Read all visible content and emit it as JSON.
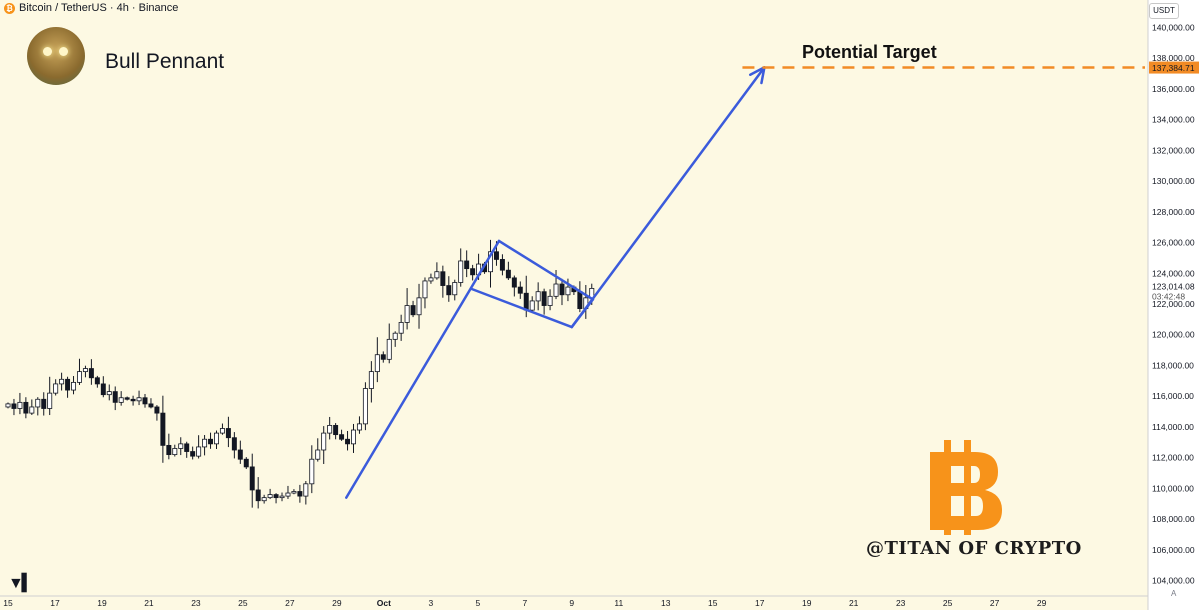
{
  "header": {
    "coin_symbol": "₿",
    "title": "Bitcoin / TetherUS · 4h · Binance"
  },
  "annotations": {
    "pattern_title": "Bull Pennant",
    "target_label": "Potential Target",
    "watermark": "@TITAN OF CRYPTO",
    "avatar_icon": "cartoon-avatar-icon",
    "bitcoin_logo_icon": "bitcoin-logo-icon",
    "tradingview_logo_icon": "tradingview-logo-icon"
  },
  "price_axis": {
    "currency": "USDT",
    "auto_label": "A"
  },
  "colors": {
    "background": "#fdf9e3",
    "up_candle": "#ffffff",
    "down_candle": "#131722",
    "pattern_lines": "#3b5bdb",
    "target_line": "#f28b25",
    "bitcoin_orange": "#f7931a"
  },
  "chart_data": {
    "type": "candlestick",
    "symbol": "Bitcoin / TetherUS",
    "timeframe": "4h",
    "exchange": "Binance",
    "ylim": [
      103000,
      141000
    ],
    "y_ticks": [
      104000,
      106000,
      108000,
      110000,
      112000,
      114000,
      116000,
      118000,
      120000,
      122000,
      124000,
      126000,
      128000,
      130000,
      132000,
      134000,
      136000,
      138000,
      140000
    ],
    "y_tick_labels": [
      "104,000.00",
      "106,000.00",
      "108,000.00",
      "110,000.00",
      "112,000.00",
      "114,000.00",
      "116,000.00",
      "118,000.00",
      "120,000.00",
      "122,000.00",
      "124,000.00",
      "126,000.00",
      "128,000.00",
      "130,000.00",
      "132,000.00",
      "134,000.00",
      "136,000.00",
      "138,000.00",
      "140,000.00"
    ],
    "xlim": [
      0,
      48.4
    ],
    "x_ticks": [
      0,
      2,
      4,
      6,
      8,
      10,
      12,
      14,
      16,
      18,
      20,
      22,
      24,
      26,
      28,
      30,
      32,
      34,
      36,
      38,
      40,
      42,
      44
    ],
    "x_tick_labels": [
      "15",
      "17",
      "19",
      "21",
      "23",
      "25",
      "27",
      "29",
      "Oct",
      "3",
      "5",
      "7",
      "9",
      "11",
      "13",
      "15",
      "17",
      "19",
      "21",
      "23",
      "25",
      "27",
      "29"
    ],
    "x_unit": "days from Sep 15",
    "closes": [
      115500,
      115200,
      115600,
      114900,
      115300,
      115800,
      115200,
      116200,
      116800,
      117100,
      116400,
      116900,
      117600,
      117800,
      117200,
      116800,
      116100,
      116300,
      115600,
      115900,
      115800,
      115700,
      115900,
      115500,
      115300,
      114900,
      112800,
      112200,
      112600,
      112900,
      112400,
      112100,
      112700,
      113200,
      112900,
      113600,
      113900,
      113300,
      112500,
      111900,
      111400,
      109900,
      109200,
      109400,
      109600,
      109400,
      109500,
      109700,
      109800,
      109500,
      110300,
      111900,
      112500,
      113600,
      114100,
      113500,
      113200,
      112900,
      113800,
      114200,
      116500,
      117600,
      118700,
      118400,
      119700,
      120100,
      120800,
      121900,
      121300,
      122400,
      123500,
      123700,
      124100,
      123200,
      122600,
      123400,
      124800,
      124300,
      123900,
      124600,
      124100,
      125400,
      124900,
      124200,
      123700,
      123100,
      122700,
      121600,
      122200,
      122800,
      121900,
      122500,
      123300,
      122600,
      123100,
      122800,
      121700,
      122400,
      123014
    ],
    "last_price": 123014.08,
    "last_price_label": "123,014.08",
    "countdown": "03:42:48",
    "pennant": {
      "pole": [
        [
          14.4,
          109400
        ],
        [
          20.9,
          126100
        ]
      ],
      "upper_line": [
        [
          20.9,
          126100
        ],
        [
          24.9,
          122300
        ]
      ],
      "lower_line": [
        [
          19.7,
          123000
        ],
        [
          24.0,
          120500
        ]
      ],
      "apex_line": [
        [
          24.0,
          120500
        ],
        [
          24.9,
          122300
        ]
      ],
      "breakout_arrow": [
        [
          24.0,
          120500
        ],
        [
          32.2,
          137400
        ]
      ]
    },
    "target": {
      "value": 137384.71,
      "label": "137,384.71"
    }
  }
}
